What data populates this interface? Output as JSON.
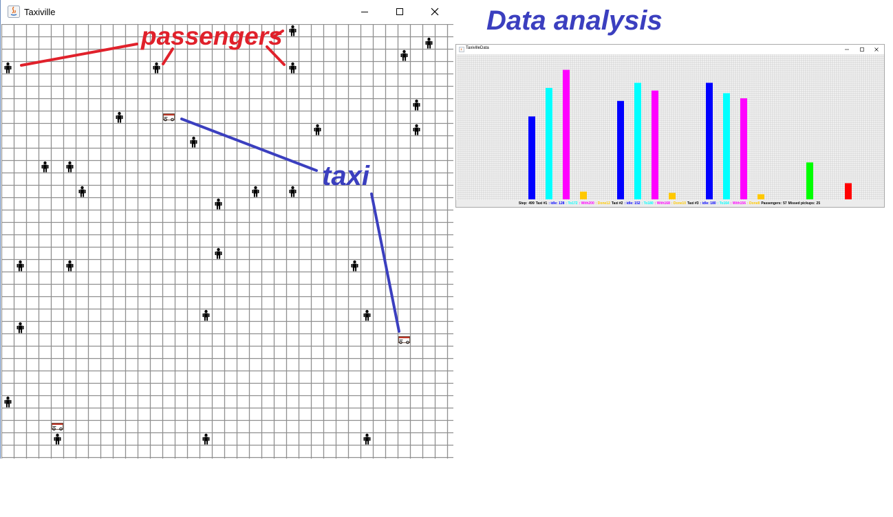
{
  "taxiville_window": {
    "title": "Taxiville",
    "grid": {
      "columns": 36,
      "rows": 35
    },
    "passengers": [
      [
        23,
        0
      ],
      [
        34,
        1
      ],
      [
        32,
        2
      ],
      [
        0,
        3
      ],
      [
        12,
        3
      ],
      [
        23,
        3
      ],
      [
        33,
        6
      ],
      [
        9,
        7
      ],
      [
        25,
        8
      ],
      [
        33,
        8
      ],
      [
        15,
        9
      ],
      [
        3,
        11
      ],
      [
        5,
        11
      ],
      [
        6,
        13
      ],
      [
        20,
        13
      ],
      [
        23,
        13
      ],
      [
        17,
        14
      ],
      [
        17,
        18
      ],
      [
        1,
        19
      ],
      [
        5,
        19
      ],
      [
        28,
        19
      ],
      [
        16,
        23
      ],
      [
        29,
        23
      ],
      [
        1,
        24
      ],
      [
        0,
        30
      ],
      [
        4,
        33
      ],
      [
        16,
        33
      ],
      [
        29,
        33
      ]
    ],
    "taxis": [
      [
        13,
        7
      ],
      [
        32,
        25
      ],
      [
        4,
        32
      ]
    ]
  },
  "data_window": {
    "heading": "Data analysis",
    "title": "TaxivilleData",
    "chart_data": {
      "type": "bar",
      "groups": [
        "Taxi #1",
        "Taxi #2",
        "Taxi #3"
      ],
      "series": [
        {
          "name": "Idle",
          "color": "#0000ff",
          "values": [
            128,
            152,
            180
          ]
        },
        {
          "name": "To",
          "color": "#00ffff",
          "values": [
            172,
            180,
            164
          ]
        },
        {
          "name": "With",
          "color": "#ff00ff",
          "values": [
            200,
            168,
            156
          ]
        },
        {
          "name": "Done",
          "color": "#ffc800",
          "values": [
            12,
            10,
            8
          ]
        }
      ],
      "totals": [
        {
          "name": "Passengers",
          "color": "#00ff00",
          "value": 57
        },
        {
          "name": "Missed pickups",
          "color": "#ff0000",
          "value": 25
        }
      ],
      "ylim": [
        0,
        225
      ],
      "grid": true
    },
    "status": [
      {
        "text": "Step:",
        "color": "#000000"
      },
      {
        "text": "499",
        "color": "#000000"
      },
      {
        "text": "Taxi #1",
        "color": "#000000"
      },
      {
        "text": ": idle: 128",
        "color": "#0000ff"
      },
      {
        "text": ": To172",
        "color": "#00ffff"
      },
      {
        "text": ": With200",
        "color": "#ff00ff"
      },
      {
        "text": ": Done12",
        "color": "#ffc800"
      },
      {
        "text": "Taxi #2",
        "color": "#000000"
      },
      {
        "text": ": idle: 152",
        "color": "#0000ff"
      },
      {
        "text": ": To180",
        "color": "#00ffff"
      },
      {
        "text": ": With168",
        "color": "#ff00ff"
      },
      {
        "text": ": Done10",
        "color": "#ffc800"
      },
      {
        "text": "Taxi #3",
        "color": "#000000"
      },
      {
        "text": ": idle: 180",
        "color": "#0000ff"
      },
      {
        "text": ": To164",
        "color": "#00ffff"
      },
      {
        "text": ": With156",
        "color": "#ff00ff"
      },
      {
        "text": ": Done8",
        "color": "#ffc800"
      },
      {
        "text": "Passengers:",
        "color": "#000000"
      },
      {
        "text": "57",
        "color": "#000000"
      },
      {
        "text": "Missed pickups:",
        "color": "#000000"
      },
      {
        "text": "25",
        "color": "#000000"
      }
    ]
  },
  "annotations": {
    "passengers_label": "passengers",
    "taxi_label": "taxi",
    "passengers_color": "#e0212b",
    "taxi_color": "#3b3fbf"
  }
}
